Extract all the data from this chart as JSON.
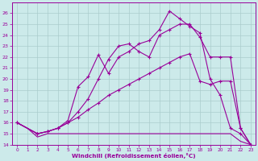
{
  "xlabel": "Windchill (Refroidissement éolien,°C)",
  "xlim": [
    -0.5,
    23.5
  ],
  "ylim": [
    14,
    27
  ],
  "yticks": [
    14,
    15,
    16,
    17,
    18,
    19,
    20,
    21,
    22,
    23,
    24,
    25,
    26
  ],
  "xticks": [
    0,
    1,
    2,
    3,
    4,
    5,
    6,
    7,
    8,
    9,
    10,
    11,
    12,
    13,
    14,
    15,
    16,
    17,
    18,
    19,
    20,
    21,
    22,
    23
  ],
  "bg_color": "#cceaea",
  "grid_color": "#aacccc",
  "line_color": "#990099",
  "line1_x": [
    0,
    1,
    2,
    3,
    4,
    5,
    6,
    7,
    8,
    9,
    10,
    11,
    12,
    13,
    14,
    15,
    16,
    17,
    18,
    19,
    20,
    21,
    22,
    23
  ],
  "line1_y": [
    16.0,
    15.5,
    14.7,
    15.0,
    15.0,
    15.0,
    15.0,
    15.0,
    15.0,
    15.0,
    15.0,
    15.0,
    15.0,
    15.0,
    15.0,
    15.0,
    15.0,
    15.0,
    15.0,
    15.0,
    15.0,
    15.0,
    14.3,
    14.0
  ],
  "line2_x": [
    0,
    2,
    3,
    4,
    5,
    6,
    7,
    8,
    9,
    10,
    11,
    12,
    13,
    14,
    15,
    16,
    17,
    18,
    19,
    20,
    21,
    22,
    23
  ],
  "line2_y": [
    16.0,
    15.0,
    15.2,
    15.5,
    16.0,
    16.5,
    17.2,
    17.8,
    18.5,
    19.0,
    19.5,
    20.0,
    20.5,
    21.0,
    21.5,
    22.0,
    22.3,
    19.8,
    19.5,
    19.8,
    19.8,
    15.5,
    14.0
  ],
  "line3_x": [
    0,
    2,
    3,
    4,
    5,
    6,
    7,
    8,
    9,
    10,
    11,
    12,
    13,
    14,
    15,
    16,
    17,
    18,
    19,
    20,
    21,
    22,
    23
  ],
  "line3_y": [
    16.0,
    15.0,
    15.2,
    15.5,
    16.0,
    17.0,
    18.2,
    20.0,
    21.8,
    23.0,
    23.2,
    22.5,
    22.0,
    24.0,
    24.5,
    25.0,
    25.0,
    23.8,
    22.0,
    22.0,
    22.0,
    15.5,
    14.0
  ],
  "line4_x": [
    0,
    2,
    3,
    4,
    5,
    6,
    7,
    8,
    9,
    10,
    11,
    12,
    13,
    14,
    15,
    16,
    17,
    18,
    19,
    20,
    21,
    22,
    23
  ],
  "line4_y": [
    16.0,
    15.0,
    15.2,
    15.5,
    16.2,
    19.3,
    20.2,
    22.2,
    20.5,
    22.0,
    22.5,
    23.2,
    23.5,
    24.5,
    26.2,
    25.5,
    24.8,
    24.2,
    20.0,
    18.5,
    15.5,
    15.0,
    14.0
  ]
}
